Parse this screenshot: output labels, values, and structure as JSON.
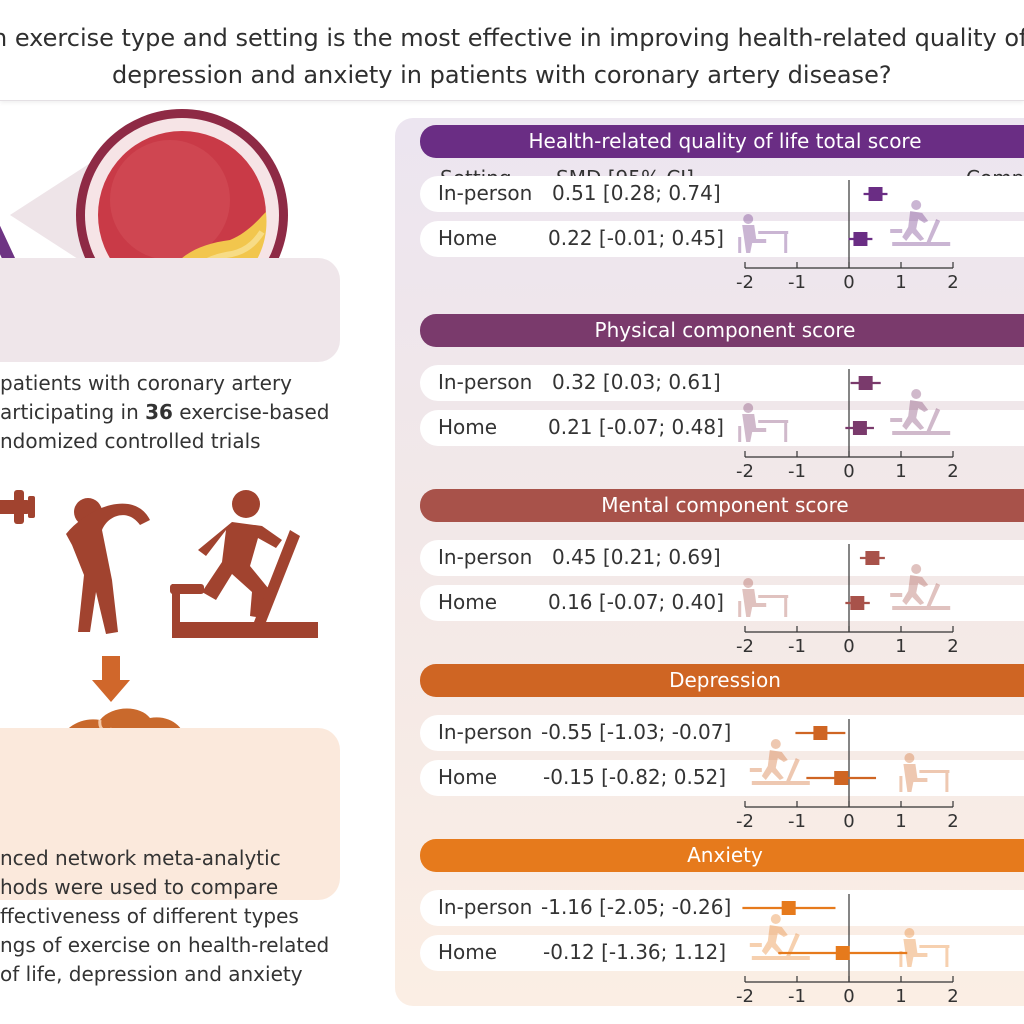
{
  "title": {
    "line1": "h exercise type and setting is the most effective in improving health-related quality of l",
    "line2": "depression and anxiety in patients with coronary artery disease?"
  },
  "left": {
    "box1": {
      "lines": [
        "patients with coronary artery",
        "articipating in ",
        "36",
        " exercise-based",
        "ndomized controlled trials"
      ]
    },
    "box2": {
      "lines": [
        "nced network meta-analytic",
        "hods were used to compare",
        "ffectiveness of different types",
        "ngs of exercise on health-related",
        "of life, depression and anxiety"
      ]
    }
  },
  "columns": {
    "setting": "Setting",
    "smd": "SMD [95% CI]",
    "comp": "Comp"
  },
  "colors": {
    "hrqol": "#6a2d84",
    "physical": "#7a3a6c",
    "mental": "#a8524a",
    "depression": "#cf6523",
    "anxiety": "#e67a1c"
  },
  "chart_data": {
    "type": "forest",
    "x_ticks": [
      "-2",
      "-1",
      "0",
      "1",
      "2"
    ],
    "xlim": [
      -2,
      2
    ],
    "panels": [
      {
        "title": "Health-related quality of life total score",
        "color": "#6a2d84",
        "rows": [
          {
            "setting": "In-person",
            "label": "0.51 [0.28; 0.74]",
            "est": 0.51,
            "lo": 0.28,
            "hi": 0.74
          },
          {
            "setting": "Home",
            "label": "0.22 [-0.01; 0.45]",
            "est": 0.22,
            "lo": -0.01,
            "hi": 0.45
          }
        ]
      },
      {
        "title": "Physical component score",
        "color": "#7a3a6c",
        "rows": [
          {
            "setting": "In-person",
            "label": "0.32 [0.03; 0.61]",
            "est": 0.32,
            "lo": 0.03,
            "hi": 0.61
          },
          {
            "setting": "Home",
            "label": "0.21 [-0.07; 0.48]",
            "est": 0.21,
            "lo": -0.07,
            "hi": 0.48
          }
        ]
      },
      {
        "title": "Mental component score",
        "color": "#a8524a",
        "rows": [
          {
            "setting": "In-person",
            "label": "0.45 [0.21; 0.69]",
            "est": 0.45,
            "lo": 0.21,
            "hi": 0.69
          },
          {
            "setting": "Home",
            "label": "0.16 [-0.07; 0.40]",
            "est": 0.16,
            "lo": -0.07,
            "hi": 0.4
          }
        ]
      },
      {
        "title": "Depression",
        "color": "#cf6523",
        "rows": [
          {
            "setting": "In-person",
            "label": "-0.55 [-1.03; -0.07]",
            "est": -0.55,
            "lo": -1.03,
            "hi": -0.07
          },
          {
            "setting": "Home",
            "label": "-0.15 [-0.82; 0.52]",
            "est": -0.15,
            "lo": -0.82,
            "hi": 0.52
          }
        ]
      },
      {
        "title": "Anxiety",
        "color": "#e67a1c",
        "rows": [
          {
            "setting": "In-person",
            "label": "-1.16 [-2.05; -0.26]",
            "est": -1.16,
            "lo": -2.05,
            "hi": -0.26
          },
          {
            "setting": "Home",
            "label": "-0.12 [-1.36; 1.12]",
            "est": -0.12,
            "lo": -1.36,
            "hi": 1.12
          }
        ]
      }
    ]
  }
}
